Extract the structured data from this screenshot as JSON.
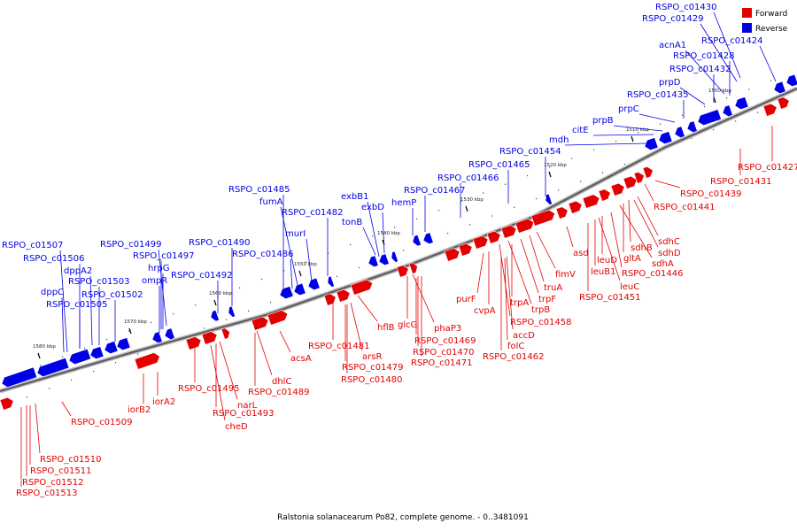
{
  "caption": "Ralstonia solanacearum Po82, complete genome. - 0..3481091",
  "legend": [
    {
      "label": "Forward",
      "color": "#e30000"
    },
    {
      "label": "Reverse",
      "color": "#0000e6"
    }
  ],
  "colors": {
    "forward": "#e30000",
    "reverse": "#0000e6",
    "axis": "#666666"
  },
  "scale": {
    "unit": "kbp",
    "ticks": [
      {
        "kbp": 1580,
        "label": "1580 kbp"
      },
      {
        "kbp": 1570,
        "label": "1570 kbp"
      },
      {
        "kbp": 1560,
        "label": "1560 kbp"
      },
      {
        "kbp": 1550,
        "label": "1550 kbp"
      },
      {
        "kbp": 1540,
        "label": "1540 kbp"
      },
      {
        "kbp": 1530,
        "label": "1530 kbp"
      },
      {
        "kbp": 1520,
        "label": "1520 kbp"
      },
      {
        "kbp": 1510,
        "label": "1510 kbp"
      },
      {
        "kbp": 1500,
        "label": "1500 kbp"
      }
    ]
  },
  "reverse_genes": [
    {
      "label": "RSPO_c01430"
    },
    {
      "label": "RSPO_c01429"
    },
    {
      "label": "RSPO_c01424"
    },
    {
      "label": "acnA1"
    },
    {
      "label": "RSPO_c01428"
    },
    {
      "label": "RSPO_c01432"
    },
    {
      "label": "prpD"
    },
    {
      "label": "RSPO_c01435"
    },
    {
      "label": "prpC"
    },
    {
      "label": "prpB"
    },
    {
      "label": "citE"
    },
    {
      "label": "mdh"
    },
    {
      "label": "RSPO_c01454"
    },
    {
      "label": "RSPO_c01465"
    },
    {
      "label": "RSPO_c01466"
    },
    {
      "label": "RSPO_c01467"
    },
    {
      "label": "exbB1"
    },
    {
      "label": "exbD"
    },
    {
      "label": "hemP"
    },
    {
      "label": "tonB"
    },
    {
      "label": "RSPO_c01485"
    },
    {
      "label": "fumA"
    },
    {
      "label": "RSPO_c01482"
    },
    {
      "label": "murI"
    },
    {
      "label": "RSPO_c01490"
    },
    {
      "label": "RSPO_c01486"
    },
    {
      "label": "RSPO_c01499"
    },
    {
      "label": "RSPO_c01497"
    },
    {
      "label": "hrpG"
    },
    {
      "label": "ompR"
    },
    {
      "label": "RSPO_c01492"
    },
    {
      "label": "RSPO_c01507"
    },
    {
      "label": "RSPO_c01506"
    },
    {
      "label": "dppA2"
    },
    {
      "label": "RSPO_c01503"
    },
    {
      "label": "dppC"
    },
    {
      "label": "RSPO_c01502"
    },
    {
      "label": "RSPO_c01505"
    }
  ],
  "forward_genes": [
    {
      "label": "RSPO_c01427"
    },
    {
      "label": "RSPO_c01431"
    },
    {
      "label": "RSPO_c01439"
    },
    {
      "label": "RSPO_c01441"
    },
    {
      "label": "sdhC"
    },
    {
      "label": "sdhB"
    },
    {
      "label": "sdhD"
    },
    {
      "label": "gltA"
    },
    {
      "label": "sdhA"
    },
    {
      "label": "RSPO_c01446"
    },
    {
      "label": "leuD"
    },
    {
      "label": "leuC"
    },
    {
      "label": "leuB1"
    },
    {
      "label": "RSPO_c01451"
    },
    {
      "label": "asd"
    },
    {
      "label": "fimV"
    },
    {
      "label": "truA"
    },
    {
      "label": "trpF"
    },
    {
      "label": "trpA"
    },
    {
      "label": "trpB"
    },
    {
      "label": "RSPO_c01458"
    },
    {
      "label": "purF"
    },
    {
      "label": "cvpA"
    },
    {
      "label": "accD"
    },
    {
      "label": "folC"
    },
    {
      "label": "RSPO_c01462"
    },
    {
      "label": "phaP3"
    },
    {
      "label": "glcG"
    },
    {
      "label": "RSPO_c01469"
    },
    {
      "label": "RSPO_c01470"
    },
    {
      "label": "RSPO_c01471"
    },
    {
      "label": "hflB"
    },
    {
      "label": "arsR"
    },
    {
      "label": "RSPO_c01481"
    },
    {
      "label": "RSPO_c01479"
    },
    {
      "label": "RSPO_c01480"
    },
    {
      "label": "acsA"
    },
    {
      "label": "dhlC"
    },
    {
      "label": "RSPO_c01489"
    },
    {
      "label": "RSPO_c01495"
    },
    {
      "label": "narL"
    },
    {
      "label": "RSPO_c01493"
    },
    {
      "label": "cheD"
    },
    {
      "label": "iorA2"
    },
    {
      "label": "iorB2"
    },
    {
      "label": "RSPO_c01509"
    },
    {
      "label": "RSPO_c01510"
    },
    {
      "label": "RSPO_c01511"
    },
    {
      "label": "RSPO_c01512"
    },
    {
      "label": "RSPO_c01513"
    }
  ]
}
